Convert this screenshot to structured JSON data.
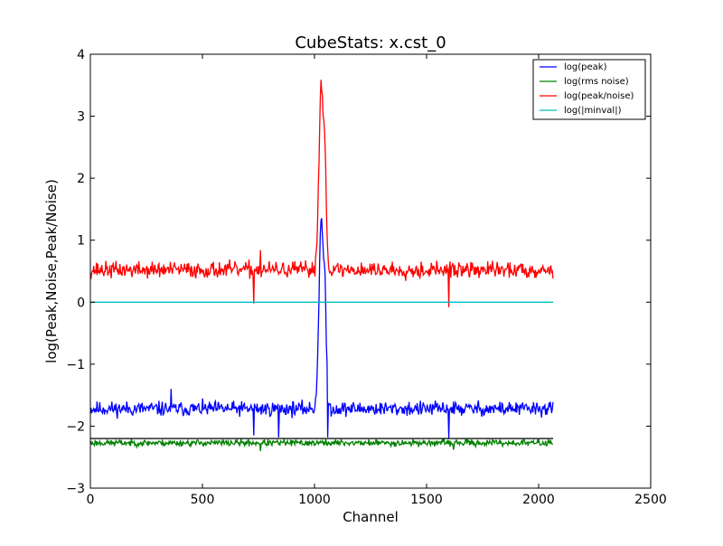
{
  "chart_data": {
    "type": "line",
    "title": "CubeStats: x.cst_0",
    "xlabel": "Channel",
    "ylabel": "log(Peak,Noise,Peak/Noise)",
    "xlim": [
      0,
      2500
    ],
    "ylim": [
      -3,
      4
    ],
    "xticks": [
      0,
      500,
      1000,
      1500,
      2000,
      2500
    ],
    "yticks": [
      -3,
      -2,
      -1,
      0,
      1,
      2,
      3,
      4
    ],
    "xtick_labels": [
      "0",
      "500",
      "1000",
      "1500",
      "2000",
      "2500"
    ],
    "ytick_labels": [
      "−3",
      "−2",
      "−1",
      "0",
      "1",
      "2",
      "3",
      "4"
    ],
    "grid": false,
    "legend_position": "top-right",
    "series": [
      {
        "name": "log(peak)",
        "color": "#0000ff",
        "baseline": -1.72,
        "noise": 0.09,
        "seed": 11,
        "line": {
          "peak_center": 1030,
          "peak_value": 1.34,
          "peak_width": 10
        },
        "dips": [
          [
            360,
            -1.4
          ],
          [
            730,
            -2.15
          ],
          [
            840,
            -2.18
          ],
          [
            1060,
            -2.18
          ],
          [
            1600,
            -2.2
          ]
        ]
      },
      {
        "name": "log(rms noise)",
        "color": "#008000",
        "baseline": -2.27,
        "noise": 0.04,
        "seed": 23,
        "dips": [
          [
            760,
            -2.4
          ],
          [
            1620,
            -2.38
          ]
        ]
      },
      {
        "name": "log(peak/noise)",
        "color": "#ff0000",
        "baseline": 0.52,
        "noise": 0.1,
        "seed": 37,
        "line": {
          "peak_center": 1030,
          "peak_value": 3.54,
          "peak_width": 10
        },
        "dips": [
          [
            730,
            -0.02
          ],
          [
            760,
            0.84
          ],
          [
            1600,
            -0.08
          ]
        ]
      },
      {
        "name": "log(|minval|)",
        "color": "#00bfbf",
        "constant": 0.0
      }
    ],
    "reference_line": {
      "y": -2.2,
      "color": "#000000"
    },
    "x_range": [
      0,
      2065
    ]
  }
}
